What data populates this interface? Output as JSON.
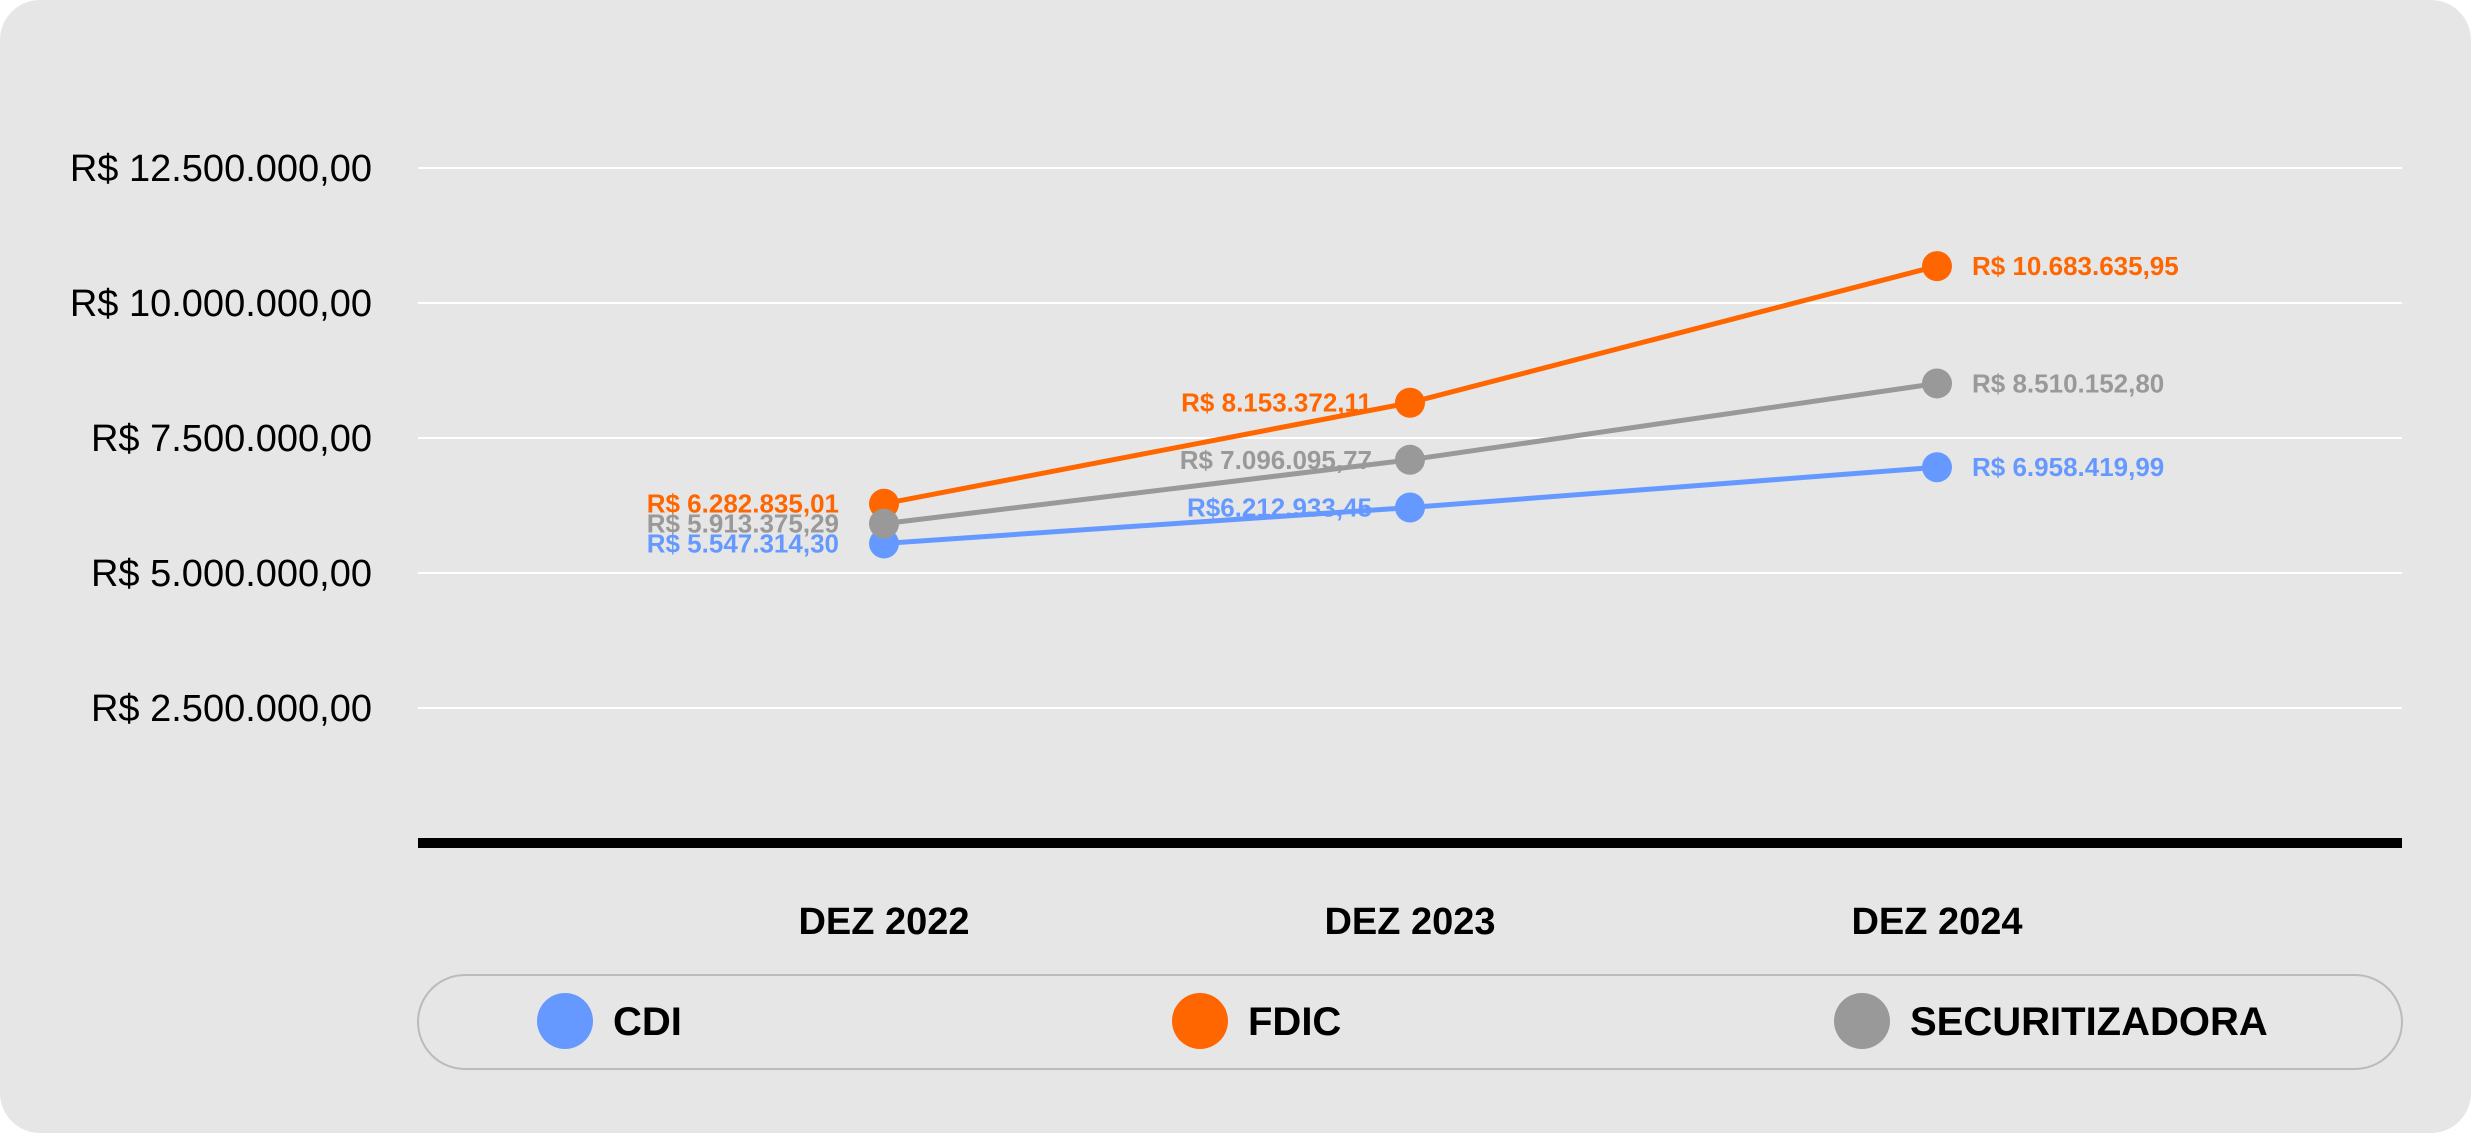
{
  "chart_data": {
    "type": "line",
    "categories": [
      "DEZ 2022",
      "DEZ 2023",
      "DEZ 2024"
    ],
    "yticks": [
      {
        "value": 2500000,
        "label": "R$ 2.500.000,00"
      },
      {
        "value": 5000000,
        "label": "R$ 5.000.000,00"
      },
      {
        "value": 7500000,
        "label": "R$ 7.500.000,00"
      },
      {
        "value": 10000000,
        "label": "R$ 10.000.000,00"
      },
      {
        "value": 12500000,
        "label": "R$ 12.500.000,00"
      }
    ],
    "ylim": [
      0,
      13000000
    ],
    "grid": true,
    "legend_position": "bottom",
    "series": [
      {
        "name": "CDI",
        "color": "#6699ff",
        "values": [
          5547314.3,
          6212933.45,
          6958419.99
        ],
        "labels": [
          "R$ 5.547.314,30",
          "R$6.212.933,45",
          "R$ 6.958.419,99"
        ]
      },
      {
        "name": "FDIC",
        "color": "#ff6600",
        "values": [
          6282835.01,
          8153372.11,
          10683635.95
        ],
        "labels": [
          "R$ 6.282.835,01",
          "R$ 8.153.372,11",
          "R$ 10.683.635,95"
        ]
      },
      {
        "name": "SECURITIZADORA",
        "color": "#999999",
        "values": [
          5913375.29,
          7096095.77,
          8510152.8
        ],
        "labels": [
          "R$ 5.913.375,29",
          "R$ 7.096.095,77",
          "R$ 8.510.152,80"
        ]
      }
    ]
  }
}
